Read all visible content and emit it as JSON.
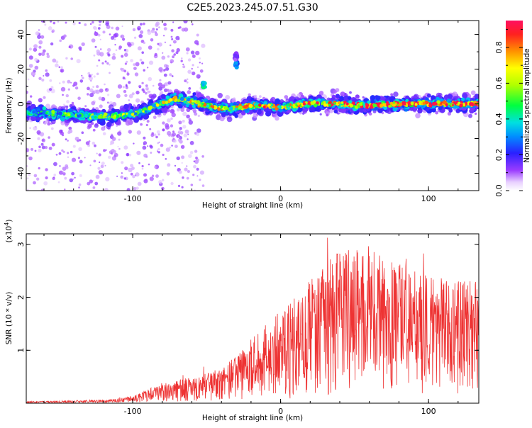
{
  "title": "C2E5.2023.245.07.51.G30",
  "chart_data": [
    {
      "type": "heatmap",
      "xlabel": "Height of straight line (km)",
      "ylabel": "Frequency (Hz)",
      "xlim": [
        -172,
        134
      ],
      "ylim": [
        -50,
        48
      ],
      "x_ticks": [
        -100,
        0,
        100
      ],
      "y_ticks": [
        -40,
        -20,
        0,
        20,
        40
      ],
      "colorbar": {
        "label": "Normalized spectral amplitude",
        "range": [
          0,
          0.95
        ],
        "ticks": [
          "0.0",
          "0.2",
          "0.4",
          "0.6",
          "0.8"
        ],
        "tick_values": [
          0,
          0.2,
          0.4,
          0.6,
          0.8
        ]
      },
      "ridge": [
        {
          "x": -172,
          "y": -5
        },
        {
          "x": -150,
          "y": -6
        },
        {
          "x": -130,
          "y": -7
        },
        {
          "x": -110,
          "y": -7
        },
        {
          "x": -100,
          "y": -6
        },
        {
          "x": -90,
          "y": -3
        },
        {
          "x": -80,
          "y": 0
        },
        {
          "x": -72,
          "y": 3
        },
        {
          "x": -65,
          "y": 2
        },
        {
          "x": -55,
          "y": 0
        },
        {
          "x": -45,
          "y": -2
        },
        {
          "x": -35,
          "y": -3
        },
        {
          "x": -28,
          "y": -2
        },
        {
          "x": -20,
          "y": -1
        },
        {
          "x": -10,
          "y": -1
        },
        {
          "x": 0,
          "y": -2
        },
        {
          "x": 10,
          "y": -1
        },
        {
          "x": 20,
          "y": 0
        },
        {
          "x": 40,
          "y": 0
        },
        {
          "x": 60,
          "y": -1
        },
        {
          "x": 80,
          "y": 0
        },
        {
          "x": 100,
          "y": 0
        },
        {
          "x": 120,
          "y": 0
        },
        {
          "x": 134,
          "y": 0
        }
      ],
      "features": [
        {
          "x": -52,
          "y": 11,
          "amp": 0.5
        },
        {
          "x": -30,
          "y": 23,
          "amp": 0.35
        },
        {
          "x": -30,
          "y": 27,
          "amp": 0.15
        }
      ]
    },
    {
      "type": "line",
      "xlabel": "Height of straight line (km)",
      "ylabel": "SNR (10 * v/v)",
      "multiplier": "(x10",
      "multiplier_exp": "4",
      "multiplier_close": ")",
      "xlim": [
        -172,
        134
      ],
      "ylim": [
        0,
        3.2
      ],
      "x_ticks": [
        -100,
        0,
        100
      ],
      "y_ticks": [
        1,
        2,
        3
      ],
      "series_color": "#ee3333",
      "envelope": [
        {
          "x": -172,
          "y": 0.03
        },
        {
          "x": -120,
          "y": 0.06
        },
        {
          "x": -100,
          "y": 0.12
        },
        {
          "x": -80,
          "y": 0.35
        },
        {
          "x": -60,
          "y": 0.45
        },
        {
          "x": -40,
          "y": 0.6
        },
        {
          "x": -20,
          "y": 1.1
        },
        {
          "x": 0,
          "y": 1.6
        },
        {
          "x": 20,
          "y": 2.2
        },
        {
          "x": 40,
          "y": 2.6
        },
        {
          "x": 60,
          "y": 2.7
        },
        {
          "x": 80,
          "y": 2.4
        },
        {
          "x": 100,
          "y": 2.2
        },
        {
          "x": 120,
          "y": 2.1
        },
        {
          "x": 134,
          "y": 2.2
        }
      ]
    }
  ]
}
